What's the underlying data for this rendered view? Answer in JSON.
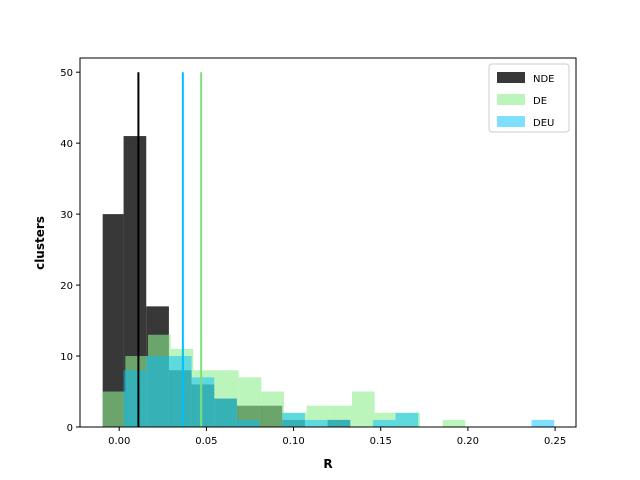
{
  "chart_data": {
    "type": "histogram",
    "xlabel": "R",
    "ylabel": "clusters",
    "xlim": [
      -0.0225,
      0.262
    ],
    "ylim": [
      0,
      52
    ],
    "x_ticks": [
      0.0,
      0.05,
      0.1,
      0.15,
      0.2,
      0.25
    ],
    "x_tick_labels": [
      "0.00",
      "0.05",
      "0.10",
      "0.15",
      "0.20",
      "0.25"
    ],
    "y_ticks": [
      0,
      10,
      20,
      30,
      40,
      50
    ],
    "y_tick_labels": [
      "0",
      "10",
      "20",
      "30",
      "40",
      "50"
    ],
    "grid": false,
    "legend_position": "top-right",
    "series": [
      {
        "name": "NDE",
        "color": "#000000",
        "alpha": 0.78,
        "bins": [
          {
            "x0": -0.0095,
            "x1": 0.0025,
            "count": 30
          },
          {
            "x0": 0.0025,
            "x1": 0.0155,
            "count": 41
          },
          {
            "x0": 0.0155,
            "x1": 0.0285,
            "count": 17
          },
          {
            "x0": 0.0285,
            "x1": 0.0415,
            "count": 8
          },
          {
            "x0": 0.0415,
            "x1": 0.0545,
            "count": 6
          },
          {
            "x0": 0.0545,
            "x1": 0.0675,
            "count": 4
          },
          {
            "x0": 0.0675,
            "x1": 0.0805,
            "count": 3
          },
          {
            "x0": 0.0805,
            "x1": 0.0935,
            "count": 3
          },
          {
            "x0": 0.0935,
            "x1": 0.1065,
            "count": 1
          },
          {
            "x0": 0.1065,
            "x1": 0.1195,
            "count": 0
          },
          {
            "x0": 0.1195,
            "x1": 0.1325,
            "count": 1
          }
        ],
        "mean_line": 0.011
      },
      {
        "name": "DE",
        "color": "#90EE90",
        "alpha": 0.6,
        "bins": [
          {
            "x0": -0.0095,
            "x1": 0.0035,
            "count": 5
          },
          {
            "x0": 0.0035,
            "x1": 0.0165,
            "count": 10
          },
          {
            "x0": 0.0165,
            "x1": 0.0295,
            "count": 13
          },
          {
            "x0": 0.0295,
            "x1": 0.0425,
            "count": 11
          },
          {
            "x0": 0.0425,
            "x1": 0.0555,
            "count": 8
          },
          {
            "x0": 0.0555,
            "x1": 0.0685,
            "count": 8
          },
          {
            "x0": 0.0685,
            "x1": 0.0815,
            "count": 7
          },
          {
            "x0": 0.0815,
            "x1": 0.0945,
            "count": 5
          },
          {
            "x0": 0.0945,
            "x1": 0.1075,
            "count": 2
          },
          {
            "x0": 0.1075,
            "x1": 0.1205,
            "count": 3
          },
          {
            "x0": 0.1205,
            "x1": 0.1335,
            "count": 3
          },
          {
            "x0": 0.1335,
            "x1": 0.1465,
            "count": 5
          },
          {
            "x0": 0.1465,
            "x1": 0.1595,
            "count": 2
          },
          {
            "x0": 0.1595,
            "x1": 0.1725,
            "count": 2
          },
          {
            "x0": 0.1725,
            "x1": 0.1855,
            "count": 0
          },
          {
            "x0": 0.1855,
            "x1": 0.1985,
            "count": 1
          }
        ],
        "mean_line": 0.047
      },
      {
        "name": "DEU",
        "color": "#00BFFF",
        "alpha": 0.5,
        "bins": [
          {
            "x0": 0.0025,
            "x1": 0.0155,
            "count": 8
          },
          {
            "x0": 0.0155,
            "x1": 0.0285,
            "count": 10
          },
          {
            "x0": 0.0285,
            "x1": 0.0415,
            "count": 10
          },
          {
            "x0": 0.0415,
            "x1": 0.0545,
            "count": 7
          },
          {
            "x0": 0.0545,
            "x1": 0.0675,
            "count": 4
          },
          {
            "x0": 0.0675,
            "x1": 0.0805,
            "count": 1
          },
          {
            "x0": 0.0805,
            "x1": 0.0935,
            "count": 0
          },
          {
            "x0": 0.0935,
            "x1": 0.1065,
            "count": 2
          },
          {
            "x0": 0.1065,
            "x1": 0.1195,
            "count": 1
          },
          {
            "x0": 0.1195,
            "x1": 0.1325,
            "count": 1
          },
          {
            "x0": 0.1325,
            "x1": 0.1455,
            "count": 0
          },
          {
            "x0": 0.1455,
            "x1": 0.1585,
            "count": 1
          },
          {
            "x0": 0.1585,
            "x1": 0.1715,
            "count": 2
          },
          {
            "x0": 0.1715,
            "x1": 0.2365,
            "count": 0
          },
          {
            "x0": 0.2365,
            "x1": 0.2495,
            "count": 1
          }
        ],
        "mean_line": 0.0365
      }
    ]
  }
}
